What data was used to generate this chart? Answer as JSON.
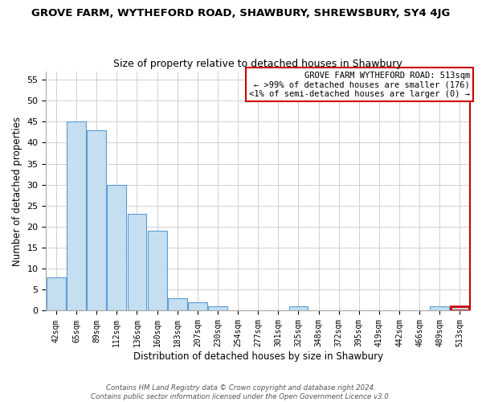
{
  "title": "GROVE FARM, WYTHEFORD ROAD, SHAWBURY, SHREWSBURY, SY4 4JG",
  "subtitle": "Size of property relative to detached houses in Shawbury",
  "xlabel": "Distribution of detached houses by size in Shawbury",
  "ylabel": "Number of detached properties",
  "bar_labels": [
    "42sqm",
    "65sqm",
    "89sqm",
    "112sqm",
    "136sqm",
    "160sqm",
    "183sqm",
    "207sqm",
    "230sqm",
    "254sqm",
    "277sqm",
    "301sqm",
    "325sqm",
    "348sqm",
    "372sqm",
    "395sqm",
    "419sqm",
    "442sqm",
    "466sqm",
    "489sqm",
    "513sqm"
  ],
  "bar_values": [
    8,
    45,
    43,
    30,
    23,
    19,
    3,
    2,
    1,
    0,
    0,
    0,
    1,
    0,
    0,
    0,
    0,
    0,
    0,
    1,
    1
  ],
  "bar_color": "#c5dff0",
  "bar_edge_color": "#5b9bd5",
  "highlight_bar_index": 20,
  "highlight_bar_edge_color": "#cc0000",
  "ylim": [
    0,
    57
  ],
  "yticks": [
    0,
    5,
    10,
    15,
    20,
    25,
    30,
    35,
    40,
    45,
    50,
    55
  ],
  "grid_color": "#d0d0d0",
  "box_text_line1": "GROVE FARM WYTHEFORD ROAD: 513sqm",
  "box_text_line2": "← >99% of detached houses are smaller (176)",
  "box_text_line3": "<1% of semi-detached houses are larger (0) →",
  "box_edge_color": "#cc0000",
  "footer_line1": "Contains HM Land Registry data © Crown copyright and database right 2024.",
  "footer_line2": "Contains public sector information licensed under the Open Government Licence v3.0.",
  "bg_color": "#ffffff",
  "right_red_line": true
}
